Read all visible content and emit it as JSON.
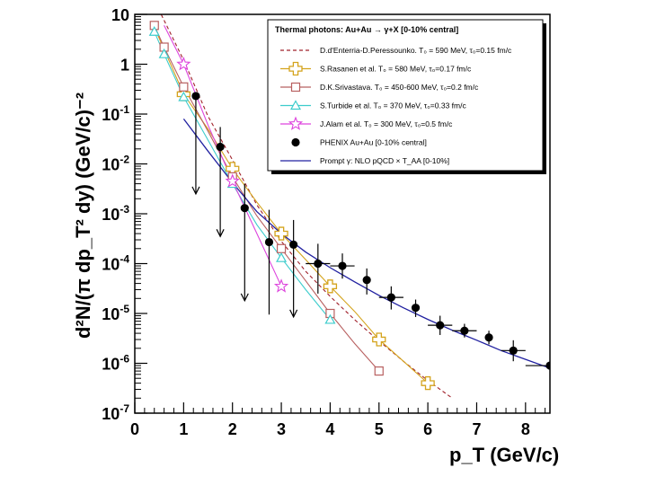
{
  "chart_data": {
    "type": "scatter",
    "title": "",
    "xlabel": "p_T (GeV/c)",
    "ylabel": "d²N/(π dp_T² dy) (GeV/c)⁻²",
    "xlim": [
      0,
      8.5
    ],
    "ylim_log10": [
      -7,
      1
    ],
    "y_scale": "log",
    "grid": false,
    "legend_position": "top-right",
    "legend_title": "Thermal photons: Au+Au → γ+X  [0-10% central]",
    "x_ticks": [
      "0",
      "1",
      "2",
      "3",
      "4",
      "5",
      "6",
      "7",
      "8"
    ],
    "y_ticks": [
      {
        "base": "10",
        "exp": "-7",
        "log": -7
      },
      {
        "base": "10",
        "exp": "-6",
        "log": -6
      },
      {
        "base": "10",
        "exp": "-5",
        "log": -5
      },
      {
        "base": "10",
        "exp": "-4",
        "log": -4
      },
      {
        "base": "10",
        "exp": "-3",
        "log": -3
      },
      {
        "base": "10",
        "exp": "-2",
        "log": -2
      },
      {
        "base": "10",
        "exp": "-1",
        "log": -1
      },
      {
        "base": "1",
        "exp": "",
        "log": 0
      },
      {
        "base": "10",
        "exp": "",
        "log": 1
      }
    ],
    "series": [
      {
        "name": "D.d'Enterria-D.Peressounko. T₀ = 590 MeV, τ₀=0.15 fm/c",
        "style": "dashed-line",
        "color": "#a0202a",
        "x": [
          0.2,
          0.5,
          1.0,
          1.5,
          2.0,
          2.5,
          3.0,
          3.5,
          4.0,
          4.5,
          5.0,
          5.5,
          6.0,
          6.5
        ],
        "y": [
          120,
          12,
          1.2,
          0.09,
          0.012,
          0.0015,
          0.00028,
          7e-05,
          2.2e-05,
          7.5e-06,
          2.8e-06,
          1.1e-06,
          4.5e-07,
          2e-07
        ]
      },
      {
        "name": "S.Rasanen et al. T₀ = 580 MeV, τ₀=0.17 fm/c",
        "style": "line-open-cross",
        "color": "#d4a31c",
        "x": [
          0.4,
          0.6,
          1.0,
          1.5,
          2.0,
          2.5,
          3.0,
          3.5,
          4.0,
          4.5,
          5.0,
          5.5,
          6.0
        ],
        "y": [
          5.5,
          2.0,
          0.25,
          0.05,
          0.008,
          0.0017,
          0.0004,
          0.00012,
          3.5e-05,
          1.1e-05,
          3e-06,
          1.1e-06,
          4e-07
        ],
        "markers": [
          1.0,
          2.0,
          3.0,
          4.0,
          5.0,
          6.0
        ]
      },
      {
        "name": "D.K.Srivastava. T₀ = 450-600 MeV, τ₀=0.2 fm/c",
        "style": "line-open-square",
        "color": "#b86060",
        "x": [
          0.4,
          0.6,
          1.0,
          1.5,
          2.0,
          2.5,
          3.0,
          3.5,
          4.0,
          4.5,
          5.0
        ],
        "y": [
          6,
          2.2,
          0.35,
          0.045,
          0.0055,
          0.0009,
          0.0002,
          4.5e-05,
          1e-05,
          2.5e-06,
          7e-07
        ],
        "markers": [
          0.4,
          0.6,
          1.0,
          2.0,
          3.0,
          4.0,
          5.0
        ]
      },
      {
        "name": "S.Turbide et al. T₀ = 370 MeV, τ₀=0.33 fm/c",
        "style": "line-open-triangle",
        "color": "#3ccccc",
        "x": [
          0.4,
          0.6,
          1.0,
          1.5,
          2.0,
          2.5,
          3.0,
          3.5,
          4.0
        ],
        "y": [
          4.5,
          1.6,
          0.22,
          0.03,
          0.004,
          0.0006,
          0.00013,
          3e-05,
          7.5e-06
        ],
        "markers": [
          0.4,
          0.6,
          1.0,
          2.0,
          3.0,
          4.0
        ]
      },
      {
        "name": "J.Alam et al. T₀ = 300 MeV, τ₀=0.5 fm/c",
        "style": "line-open-star",
        "color": "#dd44dd",
        "x": [
          0.6,
          1.0,
          1.5,
          2.0,
          2.5,
          3.0
        ],
        "y": [
          6,
          1.0,
          0.06,
          0.0045,
          0.0004,
          3.5e-05
        ],
        "markers": [
          1.0,
          2.0,
          3.0
        ]
      },
      {
        "name": "PHENIX Au+Au [0-10% central]",
        "style": "filled-circle",
        "color": "#000000",
        "points": [
          {
            "x": 1.25,
            "y": 0.23,
            "xerr": 0.0,
            "ylo": 0.0025,
            "yhi": 0.23,
            "upper": true
          },
          {
            "x": 1.75,
            "y": 0.022,
            "xerr": 0.0,
            "ylo": 0.00035,
            "yhi": 0.055,
            "upper": true
          },
          {
            "x": 2.25,
            "y": 0.0013,
            "xerr": 0.0,
            "ylo": 1.8e-05,
            "yhi": 0.004,
            "upper": true
          },
          {
            "x": 2.75,
            "y": 0.00027,
            "xerr": 0.0,
            "ylo": 9.5e-06,
            "yhi": 0.0012,
            "upper": false
          },
          {
            "x": 3.25,
            "y": 0.00024,
            "xerr": 0.0,
            "ylo": 8.5e-06,
            "yhi": 0.00075,
            "upper": true
          },
          {
            "x": 3.75,
            "y": 0.0001,
            "xerr": 0.25,
            "ylo": 2.5e-05,
            "yhi": 0.00025,
            "upper": false
          },
          {
            "x": 4.25,
            "y": 9e-05,
            "xerr": 0.25,
            "ylo": 5e-05,
            "yhi": 0.00016,
            "upper": false
          },
          {
            "x": 4.75,
            "y": 4.7e-05,
            "xerr": 0.0,
            "ylo": 2.4e-05,
            "yhi": 8e-05,
            "upper": false
          },
          {
            "x": 5.25,
            "y": 2.1e-05,
            "xerr": 0.25,
            "ylo": 1.2e-05,
            "yhi": 3.5e-05,
            "upper": false
          },
          {
            "x": 5.75,
            "y": 1.3e-05,
            "xerr": 0.0,
            "ylo": 8.5e-06,
            "yhi": 1.9e-05,
            "upper": false
          },
          {
            "x": 6.25,
            "y": 5.8e-06,
            "xerr": 0.25,
            "ylo": 3.7e-06,
            "yhi": 9e-06,
            "upper": false
          },
          {
            "x": 6.75,
            "y": 4.5e-06,
            "xerr": 0.25,
            "ylo": 3.3e-06,
            "yhi": 6.2e-06,
            "upper": false
          },
          {
            "x": 7.25,
            "y": 3.3e-06,
            "xerr": 0.0,
            "ylo": 2.4e-06,
            "yhi": 4.5e-06,
            "upper": false
          },
          {
            "x": 7.75,
            "y": 1.8e-06,
            "xerr": 0.25,
            "ylo": 1.1e-06,
            "yhi": 2.9e-06,
            "upper": false
          },
          {
            "x": 8.5,
            "y": 9e-07,
            "xerr": 0.5,
            "ylo": 9e-07,
            "yhi": 9e-07,
            "upper": false
          }
        ]
      },
      {
        "name": "Prompt γ: NLO pQCD × T_AA [0-10%]",
        "style": "solid-line",
        "color": "#2020a0",
        "x": [
          1.0,
          1.5,
          2.0,
          2.5,
          3.0,
          3.5,
          4.0,
          4.5,
          5.0,
          5.5,
          6.0,
          6.5,
          7.0,
          7.5,
          8.0,
          8.5
        ],
        "y": [
          0.08,
          0.018,
          0.0042,
          0.0011,
          0.0004,
          0.00017,
          8.3e-05,
          4.3e-05,
          2.3e-05,
          1.3e-05,
          7.6e-06,
          4.6e-06,
          2.9e-06,
          1.8e-06,
          1.2e-06,
          8e-07
        ]
      }
    ]
  }
}
